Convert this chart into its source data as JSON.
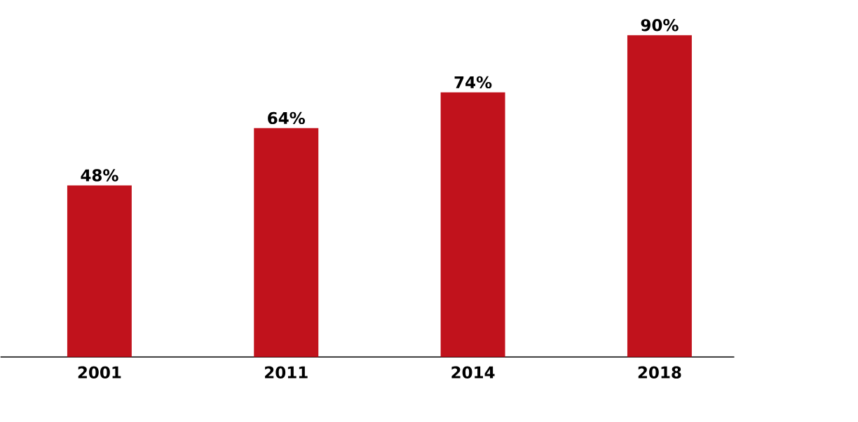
{
  "chart_data": {
    "type": "bar",
    "categories": [
      "2001",
      "2011",
      "2014",
      "2018"
    ],
    "values": [
      48,
      64,
      74,
      90
    ],
    "value_labels": [
      "48%",
      "64%",
      "74%",
      "90%"
    ],
    "color": "#c1121c"
  }
}
